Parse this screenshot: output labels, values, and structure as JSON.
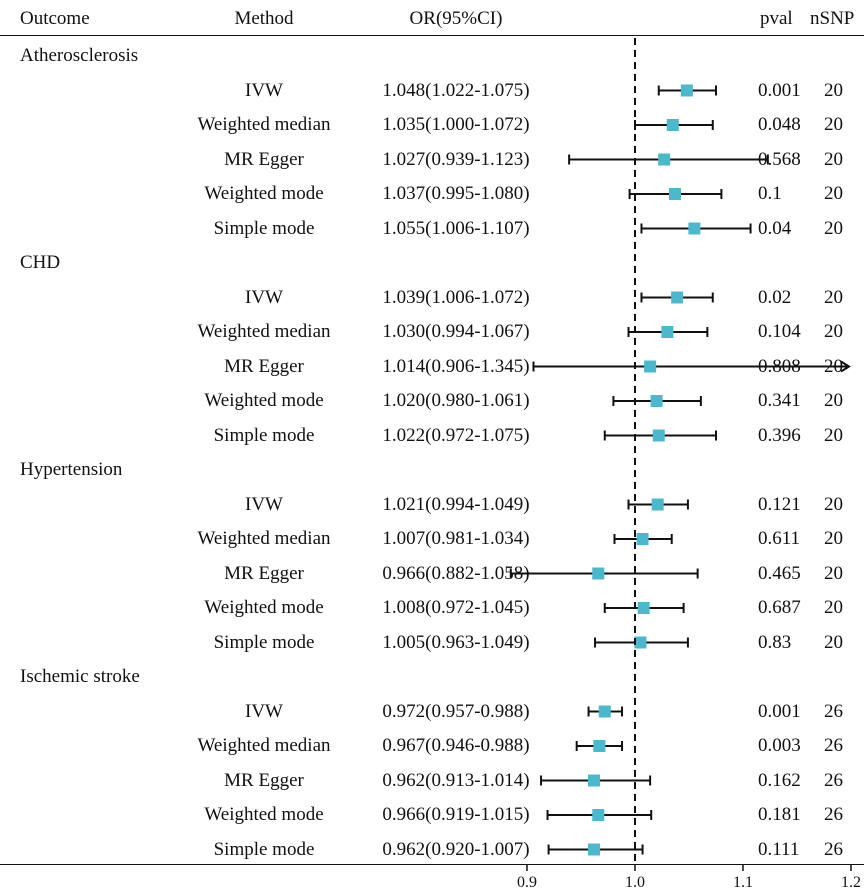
{
  "chart_data": {
    "type": "forest",
    "headers": {
      "outcome": "Outcome",
      "method": "Method",
      "or": "OR(95%CI)",
      "pval": "pval",
      "nsnp": "nSNP"
    },
    "reference_line": 1.0,
    "xlim": [
      0.88,
      1.2
    ],
    "x_ticks": [
      0.9,
      1.0,
      1.1,
      1.2
    ],
    "x_tick_labels": [
      "0.9",
      "1.0",
      "1.1",
      "1.2"
    ],
    "marker_color": "#4db8cc",
    "groups": [
      {
        "outcome": "Atherosclerosis",
        "rows": [
          {
            "method": "IVW",
            "or_text": "1.048(1.022-1.075)",
            "or": 1.048,
            "lo": 1.022,
            "hi": 1.075,
            "pval": "0.001",
            "nsnp": "20"
          },
          {
            "method": "Weighted median",
            "or_text": "1.035(1.000-1.072)",
            "or": 1.035,
            "lo": 1.0,
            "hi": 1.072,
            "pval": "0.048",
            "nsnp": "20"
          },
          {
            "method": "MR Egger",
            "or_text": "1.027(0.939-1.123)",
            "or": 1.027,
            "lo": 0.939,
            "hi": 1.123,
            "pval": "0.568",
            "nsnp": "20"
          },
          {
            "method": "Weighted mode",
            "or_text": "1.037(0.995-1.080)",
            "or": 1.037,
            "lo": 0.995,
            "hi": 1.08,
            "pval": "0.1",
            "nsnp": "20"
          },
          {
            "method": "Simple mode",
            "or_text": "1.055(1.006-1.107)",
            "or": 1.055,
            "lo": 1.006,
            "hi": 1.107,
            "pval": "0.04",
            "nsnp": "20"
          }
        ]
      },
      {
        "outcome": "CHD",
        "rows": [
          {
            "method": "IVW",
            "or_text": "1.039(1.006-1.072)",
            "or": 1.039,
            "lo": 1.006,
            "hi": 1.072,
            "pval": "0.02",
            "nsnp": "20"
          },
          {
            "method": "Weighted median",
            "or_text": "1.030(0.994-1.067)",
            "or": 1.03,
            "lo": 0.994,
            "hi": 1.067,
            "pval": "0.104",
            "nsnp": "20"
          },
          {
            "method": "MR Egger",
            "or_text": "1.014(0.906-1.345)",
            "or": 1.014,
            "lo": 0.906,
            "hi": 1.345,
            "pval": "0.808",
            "nsnp": "20",
            "arrow": true
          },
          {
            "method": "Weighted mode",
            "or_text": "1.020(0.980-1.061)",
            "or": 1.02,
            "lo": 0.98,
            "hi": 1.061,
            "pval": "0.341",
            "nsnp": "20"
          },
          {
            "method": "Simple mode",
            "or_text": "1.022(0.972-1.075)",
            "or": 1.022,
            "lo": 0.972,
            "hi": 1.075,
            "pval": "0.396",
            "nsnp": "20"
          }
        ]
      },
      {
        "outcome": "Hypertension",
        "rows": [
          {
            "method": "IVW",
            "or_text": "1.021(0.994-1.049)",
            "or": 1.021,
            "lo": 0.994,
            "hi": 1.049,
            "pval": "0.121",
            "nsnp": "20"
          },
          {
            "method": "Weighted median",
            "or_text": "1.007(0.981-1.034)",
            "or": 1.007,
            "lo": 0.981,
            "hi": 1.034,
            "pval": "0.611",
            "nsnp": "20"
          },
          {
            "method": "MR Egger",
            "or_text": "0.966(0.882-1.058)",
            "or": 0.966,
            "lo": 0.882,
            "hi": 1.058,
            "pval": "0.465",
            "nsnp": "20"
          },
          {
            "method": "Weighted mode",
            "or_text": "1.008(0.972-1.045)",
            "or": 1.008,
            "lo": 0.972,
            "hi": 1.045,
            "pval": "0.687",
            "nsnp": "20"
          },
          {
            "method": "Simple mode",
            "or_text": "1.005(0.963-1.049)",
            "or": 1.005,
            "lo": 0.963,
            "hi": 1.049,
            "pval": "0.83",
            "nsnp": "20"
          }
        ]
      },
      {
        "outcome": "Ischemic stroke",
        "rows": [
          {
            "method": "IVW",
            "or_text": "0.972(0.957-0.988)",
            "or": 0.972,
            "lo": 0.957,
            "hi": 0.988,
            "pval": "0.001",
            "nsnp": "26"
          },
          {
            "method": "Weighted median",
            "or_text": "0.967(0.946-0.988)",
            "or": 0.967,
            "lo": 0.946,
            "hi": 0.988,
            "pval": "0.003",
            "nsnp": "26"
          },
          {
            "method": "MR Egger",
            "or_text": "0.962(0.913-1.014)",
            "or": 0.962,
            "lo": 0.913,
            "hi": 1.014,
            "pval": "0.162",
            "nsnp": "26"
          },
          {
            "method": "Weighted mode",
            "or_text": "0.966(0.919-1.015)",
            "or": 0.966,
            "lo": 0.919,
            "hi": 1.015,
            "pval": "0.181",
            "nsnp": "26"
          },
          {
            "method": "Simple mode",
            "or_text": "0.962(0.920-1.007)",
            "or": 0.962,
            "lo": 0.92,
            "hi": 1.007,
            "pval": "0.111",
            "nsnp": "26"
          }
        ]
      }
    ]
  }
}
